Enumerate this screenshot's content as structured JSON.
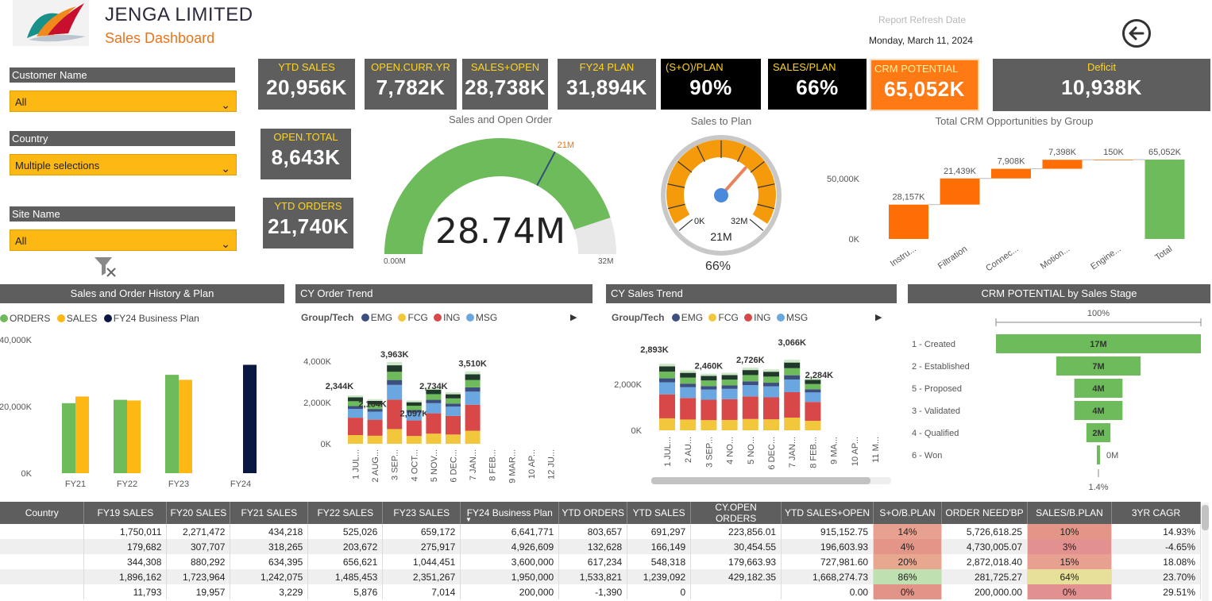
{
  "header": {
    "company": "JENGA LIMITED",
    "subtitle": "Sales Dashboard",
    "refresh_label": "Report Refresh Date",
    "refresh_date": "Monday, March 11, 2024",
    "back_icon": "back-arrow-icon"
  },
  "slicers": {
    "customer": {
      "label": "Customer Name",
      "value": "All"
    },
    "country": {
      "label": "Country",
      "value": "Multiple selections"
    },
    "site": {
      "label": "Site Name",
      "value": "All"
    },
    "clear_icon": "clear-filter-icon"
  },
  "kpis": {
    "ytd_sales": {
      "label": "YTD SALES",
      "value": "20,956K"
    },
    "open_curr_yr": {
      "label": "OPEN.CURR.YR",
      "value": "7,782K"
    },
    "sales_open": {
      "label": "SALES+OPEN",
      "value": "28,738K"
    },
    "fy24_plan": {
      "label": "FY24 PLAN",
      "value": "31,894K"
    },
    "so_plan": {
      "label": "(S+O)/PLAN",
      "value": "90%"
    },
    "sales_plan": {
      "label": "SALES/PLAN",
      "value": "66%"
    },
    "crm_potential": {
      "label": "CRM POTENTIAL",
      "value": "65,052K"
    },
    "deficit": {
      "label": "Deficit",
      "value": "10,938K"
    },
    "open_total": {
      "label": "OPEN.TOTAL",
      "value": "8,643K"
    },
    "ytd_orders": {
      "label": "YTD ORDERS",
      "value": "21,740K"
    }
  },
  "gauge_sales_open": {
    "title": "Sales and Open Order",
    "value_text": "28.74M",
    "value": 28.74,
    "min": 0,
    "max": 32,
    "target": 21,
    "min_label": "0.00M",
    "max_label": "32M",
    "target_label": "21M",
    "color": "#6dbb5a"
  },
  "gauge_sales_plan": {
    "title": "Sales to Plan",
    "min_label": "0K",
    "max_label": "32M",
    "center_label": "21M",
    "pct_label": "66%",
    "value_fraction": 0.66
  },
  "waterfall": {
    "title": "Total CRM Opportunities by Group",
    "ytick_labels": [
      "50,000K",
      "0K"
    ],
    "categories": [
      "Instru...",
      "Filtration",
      "Connec...",
      "Motion...",
      "Engine...",
      "Total"
    ],
    "values": [
      28157,
      21439,
      7908,
      7398,
      150,
      65052
    ],
    "value_labels": [
      "28,157K",
      "21,439K",
      "7,908K",
      "7,398K",
      "150K",
      "65,052K"
    ],
    "colors": {
      "increase": "#ff6d05",
      "total": "#6dbb5a"
    }
  },
  "history": {
    "title": "Sales and Order History & Plan",
    "legend": [
      {
        "name": "ORDERS",
        "color": "#6dbb5a"
      },
      {
        "name": "SALES",
        "color": "#fdb813"
      },
      {
        "name": "FY24 Business Plan",
        "color": "#0a1740"
      }
    ],
    "ytick_labels": [
      "40,000K",
      "20,000K",
      "0K"
    ],
    "categories": [
      "FY21",
      "FY22",
      "FY23",
      "FY24"
    ],
    "orders": [
      21000,
      22000,
      29500,
      null
    ],
    "sales": [
      23000,
      21800,
      28000,
      null
    ],
    "plan": [
      null,
      null,
      null,
      32500
    ]
  },
  "order_trend": {
    "title": "CY Order Trend",
    "legend_title": "Group/Tech",
    "legend": [
      {
        "name": "EMG",
        "color": "#3c4f80"
      },
      {
        "name": "FCG",
        "color": "#f3c73c"
      },
      {
        "name": "ING",
        "color": "#d94848"
      },
      {
        "name": "MSG",
        "color": "#6aa6e0"
      }
    ],
    "ytick_labels": [
      "4,000K",
      "2,000K",
      "0K"
    ],
    "categories": [
      "1 JUL...",
      "2 AUG...",
      "3 SEP...",
      "4 OCT...",
      "5 NOV...",
      "6 DEC...",
      "7 JAN...",
      "8 FEB...",
      "9 MAR...",
      "10 AP...",
      "12 JU..."
    ],
    "totals": [
      2344,
      2164,
      3963,
      2097,
      2734,
      2500,
      3510,
      0,
      0,
      0,
      0
    ],
    "total_labels": [
      "2,344K",
      "2,164K",
      "3,963K",
      "2,097K",
      "2,734K",
      "",
      "3,510K",
      "",
      "",
      "",
      ""
    ]
  },
  "sales_trend": {
    "title": "CY Sales Trend",
    "legend_title": "Group/Tech",
    "legend": [
      {
        "name": "EMG",
        "color": "#3c4f80"
      },
      {
        "name": "FCG",
        "color": "#f3c73c"
      },
      {
        "name": "ING",
        "color": "#d94848"
      },
      {
        "name": "MSG",
        "color": "#6aa6e0"
      }
    ],
    "ytick_labels": [
      "2,000K",
      "0K"
    ],
    "categories": [
      "1 JUL...",
      "2 AU...",
      "3 SEP...",
      "4 NO...",
      "5 NO...",
      "6 DEC...",
      "7 JAN...",
      "8 FEB...",
      "9 MA...",
      "10 AP...",
      "11 M..."
    ],
    "totals": [
      2893,
      2600,
      2460,
      2500,
      2726,
      2650,
      3066,
      2284,
      0,
      0,
      0
    ],
    "total_labels": [
      "2,893K",
      "",
      "2,460K",
      "",
      "2,726K",
      "",
      "3,066K",
      "2,284K",
      "",
      "",
      ""
    ]
  },
  "funnel": {
    "title": "CRM POTENTIAL by Sales Stage",
    "top_label": "100%",
    "bottom_label": "1.4%",
    "stages": [
      "1 - Created",
      "2 - Established",
      "5 - Proposed",
      "3 - Validated",
      "4 - Qualified",
      "6 - Won"
    ],
    "values": [
      17,
      7,
      4,
      4,
      2,
      0.24
    ],
    "value_labels": [
      "17M",
      "7M",
      "4M",
      "4M",
      "2M",
      "0M"
    ],
    "color": "#6dbb5a"
  },
  "table": {
    "columns": [
      "Country",
      "FY19 SALES",
      "FY20 SALES",
      "FY21 SALES",
      "FY22 SALES",
      "FY23 SALES",
      "FY24 Business Plan",
      "YTD ORDERS",
      "YTD SALES",
      "CY.OPEN ORDERS",
      "YTD SALES+OPEN",
      "S+O/B.PLAN",
      "ORDER NEED'BP",
      "SALES/B.PLAN",
      "3YR CAGR"
    ],
    "rows": [
      [
        "",
        "1,750,011",
        "2,271,472",
        "434,218",
        "525,026",
        "659,172",
        "6,641,771",
        "803,657",
        "691,297",
        "223,856.01",
        "915,152.75",
        "14%",
        "5,726,618.25",
        "10%",
        "14.93%"
      ],
      [
        "",
        "179,682",
        "307,707",
        "318,265",
        "203,672",
        "275,917",
        "4,926,609",
        "132,628",
        "166,149",
        "30,454.55",
        "196,603.93",
        "4%",
        "4,730,005.07",
        "3%",
        "-4.65%"
      ],
      [
        "",
        "344,308",
        "880,292",
        "634,395",
        "656,621",
        "1,044,451",
        "3,600,000",
        "617,234",
        "548,318",
        "179,663.93",
        "727,981.60",
        "20%",
        "2,872,018.40",
        "15%",
        "18.08%"
      ],
      [
        "",
        "1,896,162",
        "1,723,964",
        "1,242,075",
        "1,485,453",
        "2,351,267",
        "1,950,000",
        "1,533,821",
        "1,239,092",
        "429,182.35",
        "1,668,274.73",
        "86%",
        "281,725.27",
        "64%",
        "23.70%"
      ],
      [
        "",
        "11,793",
        "19,957",
        "3,229",
        "5,876",
        "7,014",
        "200,000",
        "-1,390",
        "0",
        "",
        "0.00",
        "0%",
        "200,000.00",
        "0%",
        "29.51%"
      ]
    ],
    "so_colors": [
      "#e8a090",
      "#e39688",
      "#e8a890",
      "#bfe0b0",
      "#e39488"
    ],
    "sp_colors": [
      "#e39688",
      "#e39090",
      "#e8a090",
      "#e7e09a",
      "#e39090"
    ]
  }
}
